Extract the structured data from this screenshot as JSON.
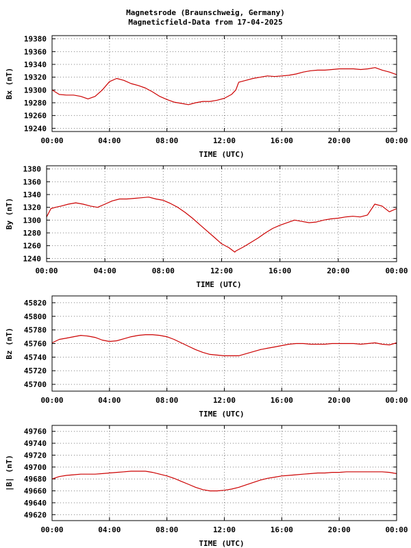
{
  "title_line1": "Magnetsrode (Braunschweig, Germany)",
  "title_line2": "Magneticfield-Data from 17-04-2025",
  "colors": {
    "series": "#cc0000",
    "grid": "#808080",
    "axis": "#000000"
  },
  "chart_data": [
    {
      "type": "line",
      "ylabel": "Bx (nT)",
      "xlabel": "TIME (UTC)",
      "xticks": [
        "00:00",
        "04:00",
        "08:00",
        "12:00",
        "16:00",
        "20:00",
        "00:00"
      ],
      "xlim": [
        0,
        24
      ],
      "ylim": [
        19235,
        19385
      ],
      "yticks": [
        19240,
        19260,
        19280,
        19300,
        19320,
        19340,
        19360,
        19380
      ],
      "grid": true,
      "series": [
        {
          "x": [
            0,
            0.5,
            1,
            1.5,
            2,
            2.5,
            3,
            3.5,
            4,
            4.5,
            5,
            5.5,
            6,
            6.5,
            7,
            7.5,
            8,
            8.5,
            9,
            9.5,
            10,
            10.5,
            11,
            11.5,
            12,
            12.5,
            12.8,
            13,
            13.5,
            14,
            14.5,
            15,
            15.5,
            16,
            16.5,
            17,
            17.5,
            18,
            18.5,
            19,
            19.5,
            20,
            20.5,
            21,
            21.5,
            22,
            22.5,
            23,
            23.5,
            24
          ],
          "y": [
            19300,
            19293,
            19292,
            19292,
            19290,
            19286,
            19290,
            19300,
            19313,
            19318,
            19315,
            19310,
            19307,
            19303,
            19297,
            19290,
            19285,
            19281,
            19279,
            19277,
            19280,
            19282,
            19282,
            19284,
            19287,
            19293,
            19300,
            19312,
            19315,
            19318,
            19320,
            19322,
            19321,
            19322,
            19323,
            19325,
            19328,
            19330,
            19331,
            19331,
            19332,
            19333,
            19333,
            19333,
            19332,
            19333,
            19335,
            19331,
            19328,
            19324
          ]
        }
      ]
    },
    {
      "type": "line",
      "ylabel": "By (nT)",
      "xlabel": "TIME (UTC)",
      "xticks": [
        "00:00",
        "04:00",
        "08:00",
        "12:00",
        "16:00",
        "20:00",
        "00:00"
      ],
      "xlim": [
        0,
        24
      ],
      "ylim": [
        1235,
        1385
      ],
      "yticks": [
        1240,
        1260,
        1280,
        1300,
        1320,
        1340,
        1360,
        1380
      ],
      "grid": true,
      "series": [
        {
          "x": [
            0,
            0.3,
            0.6,
            1,
            1.5,
            2,
            2.5,
            3,
            3.5,
            4,
            4.5,
            5,
            5.5,
            6,
            6.5,
            7,
            7.5,
            8,
            8.5,
            9,
            9.5,
            10,
            10.5,
            11,
            11.5,
            12,
            12.5,
            12.9,
            13,
            13.5,
            14,
            14.5,
            15,
            15.5,
            16,
            16.5,
            17,
            17.5,
            18,
            18.5,
            19,
            19.5,
            20,
            20.5,
            21,
            21.5,
            22,
            22.5,
            23,
            23.5,
            24
          ],
          "y": [
            1305,
            1318,
            1320,
            1322,
            1325,
            1327,
            1325,
            1322,
            1320,
            1325,
            1330,
            1333,
            1333,
            1334,
            1335,
            1336,
            1333,
            1331,
            1326,
            1320,
            1312,
            1303,
            1293,
            1283,
            1273,
            1263,
            1257,
            1250,
            1252,
            1258,
            1265,
            1272,
            1280,
            1287,
            1292,
            1296,
            1300,
            1298,
            1296,
            1297,
            1300,
            1302,
            1303,
            1305,
            1306,
            1305,
            1308,
            1325,
            1322,
            1313,
            1318
          ]
        }
      ]
    },
    {
      "type": "line",
      "ylabel": "Bz (nT)",
      "xlabel": "TIME (UTC)",
      "xticks": [
        "00:00",
        "04:00",
        "08:00",
        "12:00",
        "16:00",
        "20:00",
        "00:00"
      ],
      "xlim": [
        0,
        24
      ],
      "ylim": [
        45690,
        45830
      ],
      "yticks": [
        45700,
        45720,
        45740,
        45760,
        45780,
        45800,
        45820
      ],
      "grid": true,
      "series": [
        {
          "x": [
            0,
            0.5,
            1,
            1.5,
            2,
            2.5,
            3,
            3.5,
            4,
            4.5,
            5,
            5.5,
            6,
            6.5,
            7,
            7.5,
            8,
            8.5,
            9,
            9.5,
            10,
            10.5,
            11,
            11.5,
            12,
            12.5,
            13,
            13.5,
            14,
            14.5,
            15,
            15.5,
            16,
            16.5,
            17,
            17.5,
            18,
            18.5,
            19,
            19.5,
            20,
            20.5,
            21,
            21.5,
            22,
            22.5,
            23,
            23.5,
            24
          ],
          "y": [
            45761,
            45766,
            45768,
            45770,
            45772,
            45771,
            45769,
            45765,
            45763,
            45764,
            45767,
            45770,
            45772,
            45773,
            45773,
            45772,
            45770,
            45766,
            45761,
            45756,
            45751,
            45747,
            45744,
            45743,
            45742,
            45742,
            45742,
            45745,
            45748,
            45751,
            45753,
            45755,
            45757,
            45759,
            45760,
            45760,
            45759,
            45759,
            45759,
            45760,
            45760,
            45760,
            45760,
            45759,
            45760,
            45761,
            45759,
            45758,
            45761
          ]
        }
      ]
    },
    {
      "type": "line",
      "ylabel": "|B| (nT)",
      "xlabel": "TIME (UTC)",
      "xticks": [
        "00:00",
        "04:00",
        "08:00",
        "12:00",
        "16:00",
        "20:00",
        "00:00"
      ],
      "xlim": [
        0,
        24
      ],
      "ylim": [
        49610,
        49770
      ],
      "yticks": [
        49620,
        49640,
        49660,
        49680,
        49700,
        49720,
        49740,
        49760
      ],
      "grid": true,
      "series": [
        {
          "x": [
            0,
            0.5,
            1,
            1.5,
            2,
            2.5,
            3,
            3.5,
            4,
            4.5,
            5,
            5.5,
            6,
            6.5,
            7,
            7.5,
            8,
            8.5,
            9,
            9.5,
            10,
            10.5,
            11,
            11.5,
            12,
            12.5,
            13,
            13.5,
            14,
            14.5,
            15,
            15.5,
            16,
            16.5,
            17,
            17.5,
            18,
            18.5,
            19,
            19.5,
            20,
            20.5,
            21,
            21.5,
            22,
            22.5,
            23,
            23.5,
            24
          ],
          "y": [
            49680,
            49684,
            49686,
            49687,
            49688,
            49688,
            49688,
            49689,
            49690,
            49691,
            49692,
            49693,
            49693,
            49693,
            49691,
            49688,
            49685,
            49681,
            49676,
            49671,
            49666,
            49662,
            49660,
            49660,
            49661,
            49663,
            49666,
            49670,
            49674,
            49678,
            49681,
            49683,
            49685,
            49686,
            49687,
            49688,
            49689,
            49690,
            49690,
            49691,
            49691,
            49692,
            49692,
            49692,
            49692,
            49692,
            49692,
            49691,
            49689
          ]
        }
      ]
    }
  ]
}
